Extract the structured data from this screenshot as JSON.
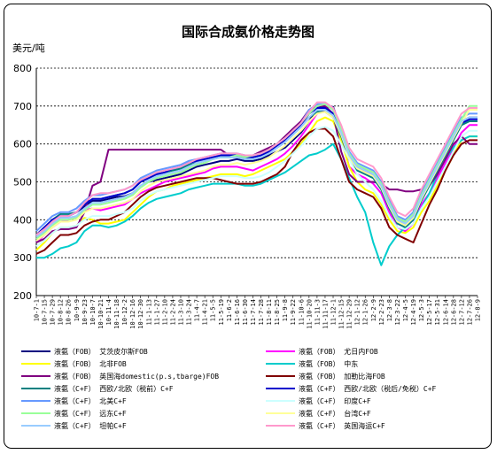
{
  "chart_data": {
    "type": "line",
    "title": "国际合成氨价格走势图",
    "ylabel": "美元/吨",
    "ylim": [
      200,
      800
    ],
    "yticks": [
      "800",
      "700",
      "600",
      "500",
      "400",
      "300",
      "200"
    ],
    "grid": "horizontal dashed",
    "legend_position": "bottom",
    "x": [
      "10-7-1",
      "10-7-15",
      "10-7-29",
      "10-8-12",
      "10-8-26",
      "10-9-9",
      "10-9-23",
      "10-10-7",
      "10-10-21",
      "10-11-4",
      "10-11-18",
      "10-12-2",
      "10-12-16",
      "10-12-30",
      "11-1-13",
      "11-1-27",
      "11-2-10",
      "11-2-24",
      "11-3-10",
      "11-3-24",
      "11-4-7",
      "11-4-21",
      "11-5-5",
      "11-5-19",
      "11-6-2",
      "11-6-16",
      "11-6-30",
      "11-7-14",
      "11-7-28",
      "11-8-11",
      "11-8-25",
      "11-9-8",
      "11-9-22",
      "11-10-6",
      "11-10-20",
      "11-11-3",
      "11-11-17",
      "11-12-1",
      "11-12-15",
      "11-12-29",
      "12-1-12",
      "12-1-26",
      "12-2-9",
      "12-2-23",
      "12-3-8",
      "12-3-22",
      "12-4-5",
      "12-4-19",
      "12-5-3",
      "12-5-17",
      "12-5-31",
      "12-6-14",
      "12-6-28",
      "12-7-12",
      "12-7-26",
      "12-8-9"
    ],
    "series": [
      {
        "name": "液氨（FOB） 艾茨皮尔斯FOB",
        "color": "#000080",
        "values": [
          350,
          370,
          395,
          410,
          410,
          420,
          435,
          450,
          450,
          455,
          460,
          462,
          470,
          490,
          500,
          505,
          510,
          515,
          520,
          530,
          540,
          545,
          550,
          555,
          555,
          560,
          555,
          555,
          560,
          570,
          580,
          590,
          610,
          630,
          660,
          695,
          698,
          698,
          640,
          560,
          540,
          530,
          520,
          500,
          450,
          400,
          395,
          420,
          480,
          500,
          540,
          580,
          620,
          660,
          670,
          670
        ]
      },
      {
        "name": "液氨（FOB） 尤日内FOB",
        "color": "#ff00ff",
        "values": [
          340,
          360,
          380,
          395,
          400,
          405,
          425,
          430,
          425,
          430,
          435,
          440,
          455,
          470,
          480,
          490,
          500,
          505,
          510,
          515,
          520,
          525,
          535,
          540,
          540,
          540,
          535,
          530,
          540,
          550,
          560,
          575,
          595,
          620,
          650,
          680,
          690,
          680,
          620,
          540,
          520,
          510,
          495,
          470,
          420,
          380,
          370,
          390,
          440,
          470,
          510,
          550,
          590,
          630,
          650,
          650
        ]
      },
      {
        "name": "液氨（FOB） 北非FOB",
        "color": "#ffff00",
        "values": [
          320,
          340,
          365,
          380,
          380,
          385,
          405,
          400,
          390,
          390,
          395,
          400,
          420,
          440,
          460,
          475,
          480,
          490,
          495,
          500,
          505,
          510,
          515,
          520,
          520,
          520,
          515,
          520,
          530,
          540,
          550,
          560,
          580,
          600,
          630,
          660,
          670,
          660,
          610,
          540,
          500,
          480,
          470,
          440,
          400,
          370,
          365,
          380,
          420,
          450,
          490,
          530,
          570,
          610,
          620,
          620
        ]
      },
      {
        "name": "液氨（FOB） 中东",
        "color": "#00cccc",
        "values": [
          300,
          300,
          310,
          325,
          330,
          340,
          370,
          385,
          385,
          380,
          385,
          395,
          410,
          430,
          445,
          455,
          460,
          465,
          470,
          480,
          485,
          490,
          495,
          495,
          495,
          495,
          490,
          490,
          495,
          505,
          515,
          525,
          540,
          555,
          570,
          575,
          585,
          600,
          560,
          510,
          460,
          420,
          340,
          280,
          330,
          360,
          380,
          400,
          430,
          470,
          520,
          560,
          590,
          610,
          620,
          620
        ]
      },
      {
        "name": "液氨（FOB） 英国海domestic(p.s,tbarge)FOB",
        "color": "#800080",
        "values": [
          340,
          350,
          370,
          375,
          375,
          380,
          420,
          490,
          500,
          585,
          585,
          585,
          585,
          585,
          585,
          585,
          585,
          585,
          585,
          585,
          585,
          585,
          585,
          585,
          570,
          565,
          565,
          570,
          580,
          590,
          600,
          620,
          640,
          660,
          690,
          700,
          700,
          680,
          580,
          520,
          500,
          500,
          500,
          495,
          480,
          480,
          475,
          475,
          480,
          490,
          520,
          560,
          600,
          620,
          600,
          600
        ]
      },
      {
        "name": "液氨（FOB） 加勒比海FOB",
        "color": "#800000",
        "values": [
          310,
          320,
          340,
          360,
          360,
          365,
          385,
          395,
          400,
          400,
          410,
          420,
          440,
          460,
          475,
          485,
          490,
          495,
          500,
          505,
          510,
          510,
          510,
          505,
          500,
          495,
          495,
          495,
          500,
          510,
          520,
          540,
          580,
          610,
          630,
          640,
          640,
          620,
          560,
          500,
          480,
          470,
          460,
          430,
          380,
          360,
          350,
          340,
          390,
          440,
          480,
          530,
          570,
          600,
          610,
          610
        ]
      },
      {
        "name": "液氨（C+F） 西欧/北欧（税前）C+F",
        "color": "#008080",
        "values": [
          360,
          380,
          400,
          415,
          415,
          420,
          440,
          455,
          455,
          460,
          465,
          470,
          480,
          500,
          510,
          520,
          525,
          530,
          535,
          545,
          550,
          555,
          560,
          565,
          565,
          565,
          560,
          560,
          565,
          575,
          590,
          605,
          625,
          645,
          670,
          685,
          685,
          670,
          620,
          560,
          530,
          520,
          510,
          480,
          430,
          390,
          380,
          400,
          450,
          490,
          530,
          570,
          610,
          650,
          660,
          660
        ]
      },
      {
        "name": "液氨（C+F） 西欧/北欧（税后/免税）C+F",
        "color": "#0000cc",
        "values": [
          360,
          380,
          400,
          410,
          410,
          420,
          440,
          455,
          455,
          460,
          465,
          470,
          480,
          500,
          510,
          520,
          525,
          535,
          540,
          550,
          555,
          560,
          565,
          570,
          570,
          570,
          565,
          565,
          570,
          580,
          595,
          610,
          630,
          650,
          680,
          695,
          695,
          680,
          625,
          565,
          535,
          525,
          515,
          485,
          435,
          395,
          385,
          405,
          455,
          495,
          535,
          575,
          615,
          655,
          665,
          665
        ]
      },
      {
        "name": "液氨（C+F） 北美C+F",
        "color": "#6699ff",
        "values": [
          370,
          390,
          410,
          420,
          420,
          430,
          450,
          465,
          465,
          470,
          475,
          480,
          490,
          510,
          520,
          530,
          535,
          540,
          545,
          555,
          560,
          565,
          570,
          575,
          575,
          575,
          570,
          570,
          575,
          585,
          600,
          615,
          635,
          655,
          690,
          705,
          705,
          690,
          640,
          580,
          550,
          540,
          530,
          500,
          450,
          410,
          400,
          420,
          470,
          510,
          550,
          590,
          630,
          670,
          680,
          680
        ]
      },
      {
        "name": "液氨（C+F） 印度C+F",
        "color": "#ccffff",
        "values": [
          330,
          345,
          365,
          380,
          380,
          385,
          400,
          410,
          410,
          410,
          415,
          420,
          430,
          450,
          465,
          475,
          480,
          485,
          490,
          495,
          500,
          505,
          510,
          515,
          515,
          515,
          510,
          510,
          515,
          525,
          540,
          555,
          575,
          595,
          620,
          640,
          645,
          635,
          600,
          560,
          520,
          500,
          480,
          450,
          410,
          380,
          375,
          390,
          430,
          460,
          500,
          540,
          580,
          620,
          635,
          635
        ]
      },
      {
        "name": "液氨（C+F） 远东C+F",
        "color": "#99ff99",
        "values": [
          350,
          365,
          385,
          400,
          400,
          405,
          425,
          440,
          440,
          445,
          450,
          455,
          465,
          485,
          500,
          510,
          515,
          520,
          525,
          535,
          545,
          550,
          560,
          565,
          565,
          570,
          565,
          570,
          575,
          585,
          600,
          615,
          635,
          655,
          680,
          700,
          705,
          690,
          640,
          575,
          545,
          535,
          525,
          495,
          445,
          405,
          395,
          415,
          465,
          505,
          545,
          585,
          625,
          665,
          700,
          700
        ]
      },
      {
        "name": "液氨（C+F） 台湾C+F",
        "color": "#ffff99",
        "values": [
          345,
          360,
          380,
          395,
          395,
          400,
          420,
          430,
          430,
          435,
          440,
          445,
          455,
          475,
          490,
          500,
          505,
          510,
          515,
          520,
          525,
          530,
          540,
          545,
          545,
          550,
          545,
          550,
          555,
          565,
          580,
          595,
          615,
          635,
          660,
          680,
          685,
          670,
          625,
          565,
          535,
          525,
          515,
          485,
          435,
          395,
          385,
          405,
          455,
          495,
          535,
          575,
          615,
          655,
          690,
          690
        ]
      },
      {
        "name": "液氨（C+F） 坦帕C+F",
        "color": "#99ccff",
        "values": [
          355,
          370,
          390,
          405,
          405,
          410,
          430,
          445,
          445,
          450,
          455,
          460,
          470,
          490,
          505,
          515,
          520,
          525,
          530,
          540,
          550,
          555,
          560,
          565,
          565,
          565,
          560,
          560,
          565,
          575,
          590,
          605,
          625,
          645,
          670,
          690,
          690,
          675,
          630,
          570,
          540,
          530,
          520,
          490,
          440,
          400,
          390,
          410,
          460,
          500,
          540,
          580,
          620,
          660,
          670,
          670
        ]
      },
      {
        "name": "液氨（C+F） 英国海运C+F",
        "color": "#ff99cc",
        "values": [
          360,
          375,
          395,
          410,
          410,
          420,
          445,
          465,
          470,
          470,
          475,
          480,
          490,
          505,
          515,
          525,
          530,
          535,
          540,
          550,
          560,
          565,
          570,
          575,
          575,
          575,
          570,
          570,
          575,
          585,
          600,
          615,
          635,
          655,
          685,
          710,
          710,
          695,
          650,
          590,
          560,
          550,
          540,
          510,
          460,
          420,
          410,
          430,
          480,
          520,
          560,
          600,
          640,
          680,
          695,
          695
        ]
      }
    ]
  }
}
